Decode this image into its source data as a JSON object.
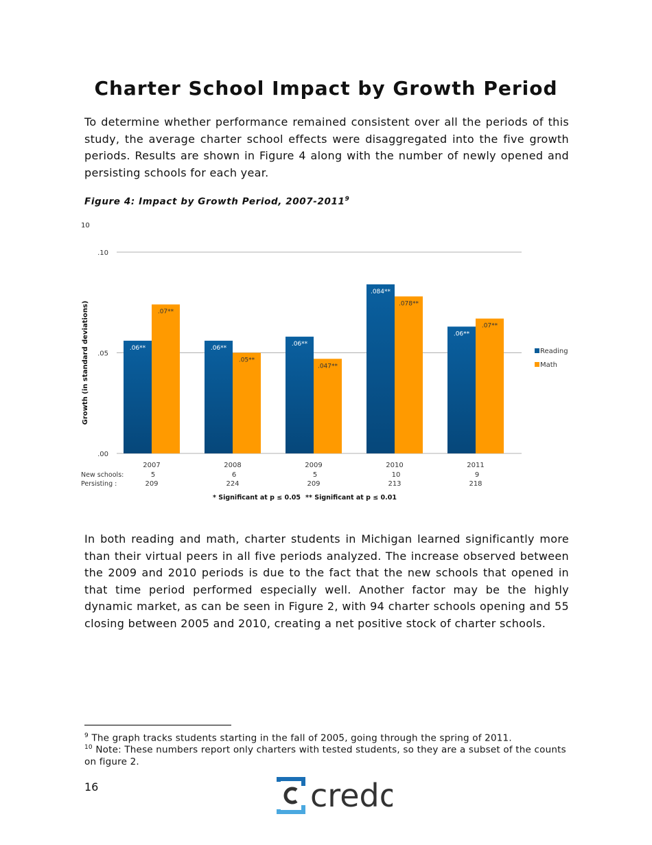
{
  "page": {
    "title": "Charter School Impact by Growth Period",
    "intro": "To determine whether performance remained consistent over all the periods of this study, the average charter school effects were disaggregated into the five growth periods.  Results are shown in Figure 4 along with the number of newly opened and persisting schools for each year.",
    "figure_caption": "Figure 4: Impact by Growth Period, 2007-2011",
    "figure_caption_footnote_ref": "9",
    "discussion": "In both reading and math, charter students in Michigan learned significantly more than their virtual peers in all five periods analyzed. The increase observed between the 2009 and 2010 periods is due to the fact that the new schools that opened in that time period performed especially well.  Another factor may be the highly dynamic market, as can be seen in Figure 2, with 94 charter schools opening and 55 closing between 2005 and 2010, creating a net positive stock of charter schools.",
    "footnotes": [
      {
        "ref": "9",
        "text": "The graph tracks students starting in the fall of 2005, going through the spring of 2011."
      },
      {
        "ref": "10",
        "text": "Note: These numbers report only charters with tested students, so they are a subset of the counts on figure 2."
      }
    ],
    "page_number": "16",
    "logo_text": "credo"
  },
  "chart_data": {
    "type": "bar",
    "corner_note": "10",
    "ylabel": "Growth (in standard deviations)",
    "ylim": [
      0,
      0.1
    ],
    "yticks": [
      ".00",
      ".05",
      ".10"
    ],
    "ytick_values": [
      0,
      0.05,
      0.1
    ],
    "grid": true,
    "legend_position": "right",
    "categories": [
      "2007",
      "2008",
      "2009",
      "2010",
      "2011"
    ],
    "series": [
      {
        "name": "Reading",
        "color": "#0a5c99",
        "values": [
          0.056,
          0.056,
          0.058,
          0.084,
          0.063
        ],
        "labels": [
          ".06**",
          ".06**",
          ".06**",
          ".084**",
          ".06**"
        ]
      },
      {
        "name": "Math",
        "color": "#ff9a00",
        "values": [
          0.074,
          0.05,
          0.047,
          0.078,
          0.067
        ],
        "labels": [
          ".07**",
          ".05**",
          ".047**",
          ".078**",
          ".07**"
        ]
      }
    ],
    "table": {
      "row_labels": [
        "New schools:",
        "Persisting :"
      ],
      "new_schools": [
        "5",
        "6",
        "5",
        "10",
        "9"
      ],
      "persisting": [
        "209",
        "224",
        "209",
        "213",
        "218"
      ]
    },
    "significance_notes": [
      "* Significant  at p ≤ 0.05",
      "** Significant  at p ≤ 0.01"
    ]
  }
}
